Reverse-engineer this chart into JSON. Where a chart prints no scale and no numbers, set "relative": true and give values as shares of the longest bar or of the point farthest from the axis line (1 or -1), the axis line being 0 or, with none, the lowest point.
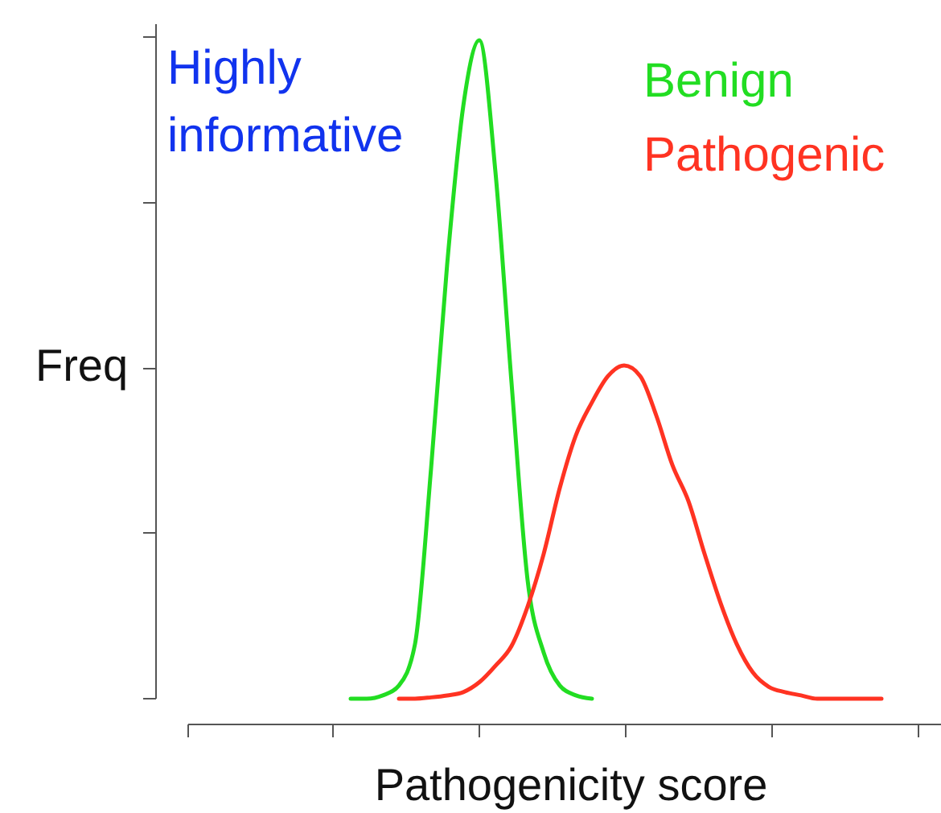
{
  "chart_data": {
    "type": "line",
    "relative": true,
    "xlabel": "Pathogenicity score",
    "ylabel": "Freq",
    "annotations": [
      "Highly informative"
    ],
    "legend": "top right",
    "marker": "none",
    "line_style": "solid",
    "categories": [
      null,
      null,
      null,
      null,
      null,
      null,
      null,
      null,
      null,
      null,
      null,
      null,
      null,
      null,
      null,
      null,
      null,
      null,
      null,
      null,
      null,
      null,
      null,
      null,
      null,
      null,
      null,
      null,
      null,
      null,
      null,
      null,
      null,
      null
    ],
    "series": [
      {
        "name": "Benign",
        "color": "#22dd22",
        "values": [
          0,
          0,
          0.005,
          0.02,
          0.083,
          0.35,
          0.66,
          0.9,
          1,
          0.8,
          0.48,
          0.18,
          0.07,
          0.02,
          0.005,
          0,
          null,
          null,
          null,
          null,
          null,
          null,
          null,
          null,
          null,
          null,
          null,
          null,
          null,
          null,
          null,
          null,
          null,
          null
        ]
      },
      {
        "name": "Pathogenic",
        "color": "#ff3322",
        "values": [
          null,
          null,
          null,
          0,
          0,
          0.002,
          0.005,
          0.01,
          0.025,
          0.05,
          0.08,
          0.14,
          0.22,
          0.32,
          0.4,
          0.45,
          0.49,
          0.506,
          0.49,
          0.43,
          0.355,
          0.3,
          0.22,
          0.145,
          0.083,
          0.04,
          0.018,
          0.01,
          0.005,
          0,
          0,
          0,
          0,
          0
        ]
      }
    ]
  }
}
